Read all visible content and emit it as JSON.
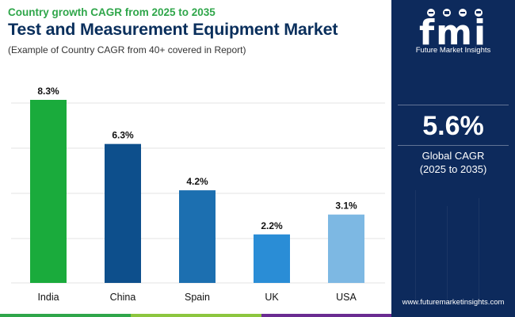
{
  "header": {
    "subtitle": "Country growth CAGR from 2025 to 2035",
    "title": "Test and Measurement Equipment Market",
    "note": "(Example of Country CAGR from 40+ covered in Report)"
  },
  "side_panel": {
    "logo_letters": "fmi",
    "logo_text": "Future Market Insights",
    "cagr_value": "5.6%",
    "cagr_label": "Global CAGR",
    "cagr_range": "(2025 to 2035)",
    "website": "www.futuremarketinsights.com"
  },
  "colors": {
    "panel_bg": "#0d2a5c",
    "title": "#0a2f5c",
    "subtitle": "#2fa64a",
    "bottom_stripes": [
      "#2fa64a",
      "#8cc63f",
      "#6a2c91",
      "#0d2a5c"
    ]
  },
  "chart_data": {
    "type": "bar",
    "categories": [
      "India",
      "China",
      "Spain",
      "UK",
      "USA"
    ],
    "values": [
      8.3,
      6.3,
      4.2,
      2.2,
      3.1
    ],
    "labels": [
      "8.3%",
      "6.3%",
      "4.2%",
      "2.2%",
      "3.1%"
    ],
    "colors": [
      "#1aab3c",
      "#0d4f8c",
      "#1c6fb0",
      "#2a8dd6",
      "#7db8e3"
    ],
    "ylim": [
      0,
      8.3
    ],
    "grid": true,
    "title": "",
    "xlabel": "",
    "ylabel": ""
  }
}
